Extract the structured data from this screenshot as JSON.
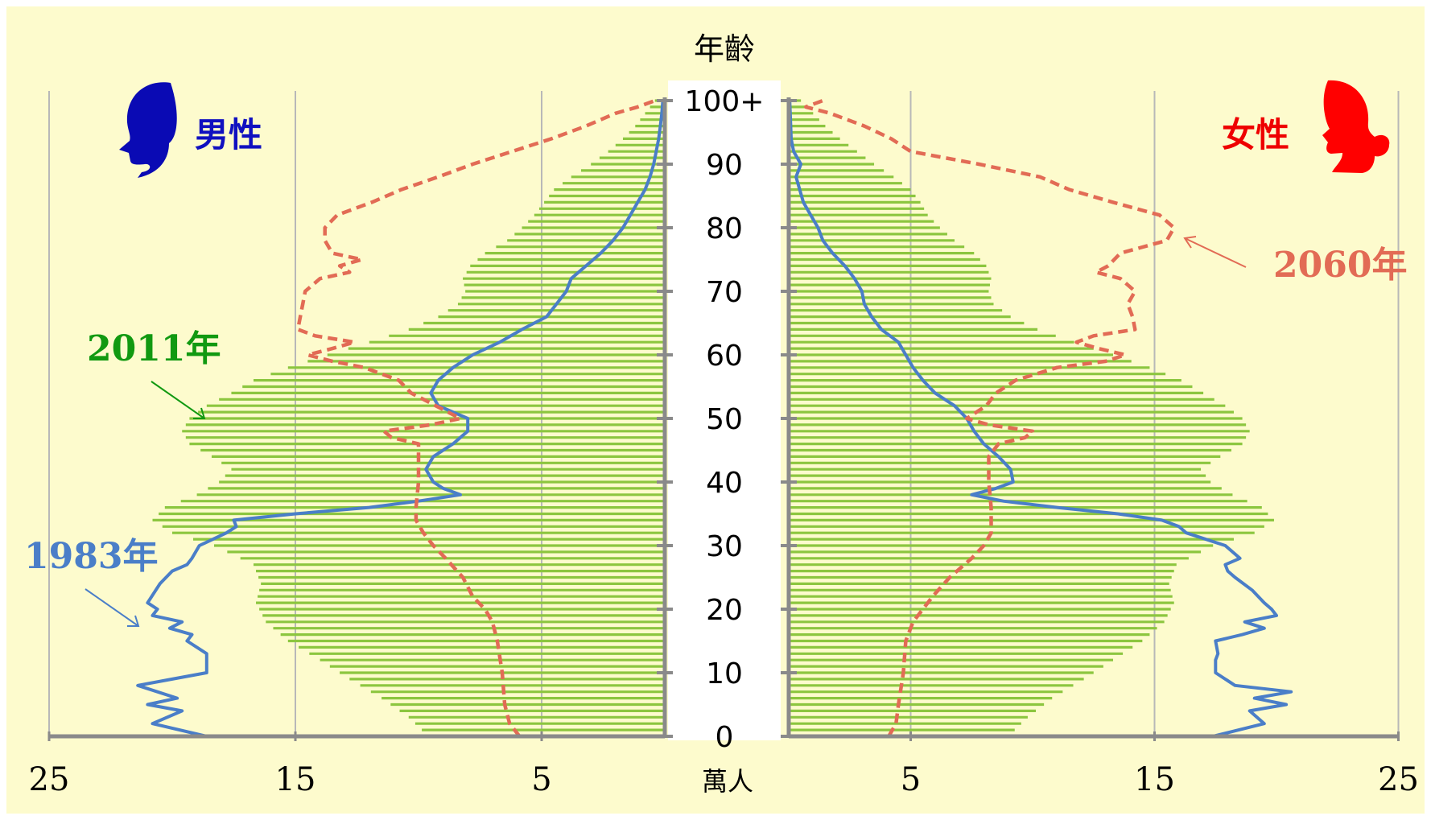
{
  "chart_data": {
    "type": "population-pyramid",
    "title": "",
    "y_axis_title": "年齡",
    "x_axis_unit": "萬人",
    "left_label": "男性",
    "right_label": "女性",
    "x_ticks": [
      25,
      15,
      5
    ],
    "xlim": [
      0,
      25
    ],
    "age_ticks": [
      "0",
      "10",
      "20",
      "30",
      "40",
      "50",
      "60",
      "70",
      "80",
      "90",
      "100+"
    ],
    "age_range": [
      0,
      100
    ],
    "grid": "vertical",
    "annotations": [
      {
        "text": "2011年",
        "series": "2011年",
        "color": "#119911"
      },
      {
        "text": "1983年",
        "series": "1983年",
        "color": "#4a7ec8"
      },
      {
        "text": "2060年",
        "series": "2060年",
        "color": "#e26b55"
      }
    ],
    "colors": {
      "background": "#fdfbcd",
      "bars_2011": "#8cc63f",
      "line_1983": "#4a7ec8",
      "line_2060": "#e26b55",
      "male_label": "#1010c0",
      "female_label": "#ee0000",
      "grid": "#b8b8b8",
      "axis": "#8a8a8a"
    },
    "series": [
      {
        "name": "2011年",
        "style": "bars",
        "male": [
          [
            0,
            9.6
          ],
          [
            3,
            10.4
          ],
          [
            6,
            11.5
          ],
          [
            9,
            12.8
          ],
          [
            12,
            14.0
          ],
          [
            15,
            15.3
          ],
          [
            18,
            16.2
          ],
          [
            21,
            16.6
          ],
          [
            24,
            16.4
          ],
          [
            27,
            16.7
          ],
          [
            30,
            18.3
          ],
          [
            32,
            20.0
          ],
          [
            34,
            20.8
          ],
          [
            36,
            20.3
          ],
          [
            38,
            19.0
          ],
          [
            40,
            18.1
          ],
          [
            42,
            17.6
          ],
          [
            44,
            18.4
          ],
          [
            46,
            19.3
          ],
          [
            48,
            19.6
          ],
          [
            50,
            19.3
          ],
          [
            52,
            18.6
          ],
          [
            54,
            17.6
          ],
          [
            56,
            16.7
          ],
          [
            58,
            15.3
          ],
          [
            60,
            13.7
          ],
          [
            62,
            12.0
          ],
          [
            64,
            10.4
          ],
          [
            66,
            9.2
          ],
          [
            68,
            8.4
          ],
          [
            70,
            8.1
          ],
          [
            72,
            8.2
          ],
          [
            74,
            7.9
          ],
          [
            76,
            7.3
          ],
          [
            78,
            6.4
          ],
          [
            80,
            5.8
          ],
          [
            82,
            5.3
          ],
          [
            84,
            4.9
          ],
          [
            86,
            4.5
          ],
          [
            88,
            3.8
          ],
          [
            90,
            3.0
          ],
          [
            92,
            2.3
          ],
          [
            94,
            1.7
          ],
          [
            96,
            1.2
          ],
          [
            98,
            0.8
          ],
          [
            100,
            0.4
          ]
        ],
        "female": [
          [
            0,
            9.0
          ],
          [
            3,
            9.8
          ],
          [
            6,
            10.8
          ],
          [
            9,
            12.1
          ],
          [
            12,
            13.3
          ],
          [
            15,
            14.5
          ],
          [
            18,
            15.4
          ],
          [
            21,
            15.8
          ],
          [
            24,
            15.6
          ],
          [
            27,
            15.9
          ],
          [
            30,
            17.4
          ],
          [
            32,
            19.1
          ],
          [
            34,
            19.9
          ],
          [
            36,
            19.4
          ],
          [
            38,
            18.2
          ],
          [
            40,
            17.3
          ],
          [
            42,
            16.9
          ],
          [
            44,
            17.7
          ],
          [
            46,
            18.6
          ],
          [
            48,
            18.9
          ],
          [
            50,
            18.6
          ],
          [
            52,
            17.9
          ],
          [
            54,
            17.0
          ],
          [
            56,
            16.1
          ],
          [
            58,
            14.8
          ],
          [
            60,
            13.3
          ],
          [
            62,
            11.7
          ],
          [
            64,
            10.2
          ],
          [
            66,
            9.1
          ],
          [
            68,
            8.4
          ],
          [
            70,
            8.2
          ],
          [
            72,
            8.3
          ],
          [
            74,
            8.1
          ],
          [
            76,
            7.6
          ],
          [
            78,
            6.8
          ],
          [
            80,
            6.2
          ],
          [
            82,
            5.7
          ],
          [
            84,
            5.4
          ],
          [
            86,
            5.0
          ],
          [
            88,
            4.3
          ],
          [
            90,
            3.5
          ],
          [
            92,
            2.8
          ],
          [
            94,
            2.1
          ],
          [
            96,
            1.5
          ],
          [
            98,
            1.0
          ],
          [
            100,
            0.5
          ]
        ]
      },
      {
        "name": "1983年",
        "style": "solid-line",
        "male": [
          [
            0,
            18.6
          ],
          [
            2,
            20.8
          ],
          [
            4,
            19.6
          ],
          [
            5,
            21.0
          ],
          [
            6,
            19.8
          ],
          [
            8,
            21.4
          ],
          [
            9,
            20.0
          ],
          [
            10,
            18.6
          ],
          [
            13,
            18.6
          ],
          [
            15,
            19.4
          ],
          [
            16,
            19.2
          ],
          [
            17,
            20.1
          ],
          [
            18,
            19.6
          ],
          [
            19,
            20.8
          ],
          [
            20,
            20.6
          ],
          [
            21,
            21.0
          ],
          [
            24,
            20.5
          ],
          [
            26,
            20.0
          ],
          [
            27,
            19.4
          ],
          [
            28,
            19.2
          ],
          [
            30,
            18.9
          ],
          [
            32,
            17.8
          ],
          [
            33,
            17.4
          ],
          [
            34,
            17.5
          ],
          [
            35,
            15.0
          ],
          [
            36,
            12.0
          ],
          [
            37,
            10.0
          ],
          [
            38,
            8.3
          ],
          [
            39,
            9.0
          ],
          [
            40,
            9.4
          ],
          [
            42,
            9.7
          ],
          [
            44,
            9.4
          ],
          [
            46,
            8.6
          ],
          [
            48,
            8.0
          ],
          [
            50,
            8.0
          ],
          [
            52,
            9.2
          ],
          [
            54,
            9.5
          ],
          [
            56,
            9.2
          ],
          [
            58,
            8.6
          ],
          [
            60,
            7.8
          ],
          [
            62,
            6.7
          ],
          [
            64,
            5.8
          ],
          [
            66,
            4.8
          ],
          [
            68,
            4.4
          ],
          [
            70,
            4.0
          ],
          [
            72,
            3.8
          ],
          [
            74,
            3.2
          ],
          [
            76,
            2.6
          ],
          [
            78,
            2.1
          ],
          [
            80,
            1.7
          ],
          [
            82,
            1.4
          ],
          [
            84,
            1.1
          ],
          [
            86,
            0.8
          ],
          [
            88,
            0.6
          ],
          [
            90,
            0.45
          ],
          [
            92,
            0.35
          ],
          [
            94,
            0.25
          ],
          [
            96,
            0.18
          ],
          [
            98,
            0.12
          ],
          [
            100,
            0.08
          ]
        ],
        "female": [
          [
            0,
            17.4
          ],
          [
            2,
            19.5
          ],
          [
            4,
            18.9
          ],
          [
            5,
            20.4
          ],
          [
            6,
            19.1
          ],
          [
            7,
            20.6
          ],
          [
            8,
            18.3
          ],
          [
            10,
            17.5
          ],
          [
            12,
            17.5
          ],
          [
            13,
            17.6
          ],
          [
            15,
            17.5
          ],
          [
            16,
            18.6
          ],
          [
            17,
            19.5
          ],
          [
            18,
            18.7
          ],
          [
            19,
            20.0
          ],
          [
            20,
            19.8
          ],
          [
            21,
            19.5
          ],
          [
            23,
            19.0
          ],
          [
            25,
            18.3
          ],
          [
            26,
            18.0
          ],
          [
            27,
            17.9
          ],
          [
            28,
            18.5
          ],
          [
            30,
            17.9
          ],
          [
            32,
            16.3
          ],
          [
            33,
            16.0
          ],
          [
            34,
            15.3
          ],
          [
            35,
            13.5
          ],
          [
            36,
            11.0
          ],
          [
            37,
            8.8
          ],
          [
            38,
            7.5
          ],
          [
            39,
            8.5
          ],
          [
            40,
            9.2
          ],
          [
            42,
            9.1
          ],
          [
            44,
            8.6
          ],
          [
            46,
            8.0
          ],
          [
            48,
            7.6
          ],
          [
            50,
            7.3
          ],
          [
            52,
            6.8
          ],
          [
            54,
            6.0
          ],
          [
            56,
            5.5
          ],
          [
            58,
            5.1
          ],
          [
            60,
            4.8
          ],
          [
            62,
            4.5
          ],
          [
            64,
            3.8
          ],
          [
            66,
            3.4
          ],
          [
            68,
            3.1
          ],
          [
            70,
            3.0
          ],
          [
            72,
            2.7
          ],
          [
            74,
            2.3
          ],
          [
            76,
            1.8
          ],
          [
            78,
            1.4
          ],
          [
            80,
            1.2
          ],
          [
            82,
            0.9
          ],
          [
            84,
            0.6
          ],
          [
            86,
            0.45
          ],
          [
            88,
            0.3
          ],
          [
            90,
            0.5
          ],
          [
            92,
            0.2
          ],
          [
            94,
            0.1
          ],
          [
            96,
            0.08
          ],
          [
            98,
            0.06
          ],
          [
            100,
            0.04
          ]
        ]
      },
      {
        "name": "2060年",
        "style": "dashed-line",
        "male": [
          [
            0,
            5.9
          ],
          [
            2,
            6.3
          ],
          [
            5,
            6.5
          ],
          [
            10,
            6.6
          ],
          [
            15,
            6.8
          ],
          [
            18,
            7.0
          ],
          [
            20,
            7.3
          ],
          [
            22,
            7.8
          ],
          [
            25,
            8.2
          ],
          [
            28,
            8.9
          ],
          [
            30,
            9.4
          ],
          [
            32,
            9.8
          ],
          [
            34,
            10.1
          ],
          [
            36,
            10.1
          ],
          [
            40,
            10.0
          ],
          [
            44,
            10.0
          ],
          [
            46,
            10.0
          ],
          [
            47,
            11.1
          ],
          [
            48,
            11.4
          ],
          [
            49,
            9.5
          ],
          [
            50,
            8.3
          ],
          [
            52,
            9.3
          ],
          [
            54,
            10.3
          ],
          [
            56,
            10.8
          ],
          [
            58,
            12.2
          ],
          [
            59,
            13.5
          ],
          [
            60,
            14.5
          ],
          [
            61,
            13.5
          ],
          [
            62,
            12.6
          ],
          [
            63,
            14.2
          ],
          [
            64,
            14.9
          ],
          [
            66,
            14.8
          ],
          [
            68,
            14.7
          ],
          [
            70,
            14.6
          ],
          [
            72,
            14.0
          ],
          [
            73,
            12.8
          ],
          [
            74,
            13.2
          ],
          [
            75,
            12.3
          ],
          [
            76,
            13.5
          ],
          [
            78,
            13.8
          ],
          [
            80,
            13.8
          ],
          [
            82,
            13.3
          ],
          [
            84,
            11.9
          ],
          [
            86,
            10.7
          ],
          [
            88,
            9.2
          ],
          [
            90,
            7.8
          ],
          [
            92,
            6.2
          ],
          [
            94,
            4.6
          ],
          [
            96,
            3.2
          ],
          [
            98,
            2.0
          ],
          [
            99,
            1.1
          ],
          [
            100,
            0.4
          ]
        ],
        "female": [
          [
            0,
            4.1
          ],
          [
            2,
            4.4
          ],
          [
            5,
            4.5
          ],
          [
            10,
            4.7
          ],
          [
            15,
            4.8
          ],
          [
            18,
            5.1
          ],
          [
            20,
            5.5
          ],
          [
            22,
            5.9
          ],
          [
            25,
            6.6
          ],
          [
            28,
            7.5
          ],
          [
            30,
            8.0
          ],
          [
            32,
            8.3
          ],
          [
            34,
            8.3
          ],
          [
            36,
            8.3
          ],
          [
            40,
            8.2
          ],
          [
            44,
            8.2
          ],
          [
            46,
            8.6
          ],
          [
            47,
            9.7
          ],
          [
            48,
            10.0
          ],
          [
            49,
            8.2
          ],
          [
            50,
            7.3
          ],
          [
            52,
            8.1
          ],
          [
            54,
            8.5
          ],
          [
            56,
            9.3
          ],
          [
            58,
            11.0
          ],
          [
            59,
            13.0
          ],
          [
            60,
            13.8
          ],
          [
            61,
            12.7
          ],
          [
            62,
            11.8
          ],
          [
            63,
            12.5
          ],
          [
            64,
            14.2
          ],
          [
            66,
            14.1
          ],
          [
            68,
            13.9
          ],
          [
            70,
            14.2
          ],
          [
            72,
            13.6
          ],
          [
            73,
            12.6
          ],
          [
            74,
            13.1
          ],
          [
            76,
            13.6
          ],
          [
            78,
            15.5
          ],
          [
            80,
            15.8
          ],
          [
            82,
            15.2
          ],
          [
            84,
            13.3
          ],
          [
            86,
            11.5
          ],
          [
            88,
            10.3
          ],
          [
            90,
            7.8
          ],
          [
            92,
            5.0
          ],
          [
            94,
            4.2
          ],
          [
            96,
            3.1
          ],
          [
            98,
            1.7
          ],
          [
            99,
            0.7
          ],
          [
            100,
            1.4
          ]
        ]
      }
    ]
  }
}
